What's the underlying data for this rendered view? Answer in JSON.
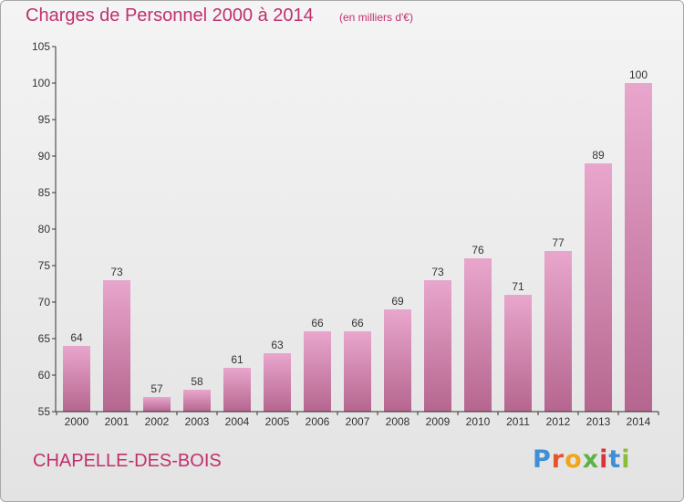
{
  "header": {
    "title": "Charges de Personnel 2000 à 2014",
    "subtitle": "(en milliers d'€)"
  },
  "footer": {
    "commune": "CHAPELLE-DES-BOIS",
    "logo_text": "Proxiti"
  },
  "colors": {
    "title": "#c0306e",
    "bar_top": "#e9a6cc",
    "bar_bottom": "#b5668f",
    "axis": "#333333"
  },
  "chart_data": {
    "type": "bar",
    "categories": [
      "2000",
      "2001",
      "2002",
      "2003",
      "2004",
      "2005",
      "2006",
      "2007",
      "2008",
      "2009",
      "2010",
      "2011",
      "2012",
      "2013",
      "2014"
    ],
    "values": [
      64,
      73,
      57,
      58,
      61,
      63,
      66,
      66,
      69,
      73,
      76,
      71,
      77,
      89,
      100
    ],
    "ylim": [
      55,
      105
    ],
    "yticks": [
      55,
      60,
      65,
      70,
      75,
      80,
      85,
      90,
      95,
      100,
      105
    ],
    "grid": false,
    "title": "Charges de Personnel 2000 à 2014",
    "xlabel": "",
    "ylabel": ""
  }
}
